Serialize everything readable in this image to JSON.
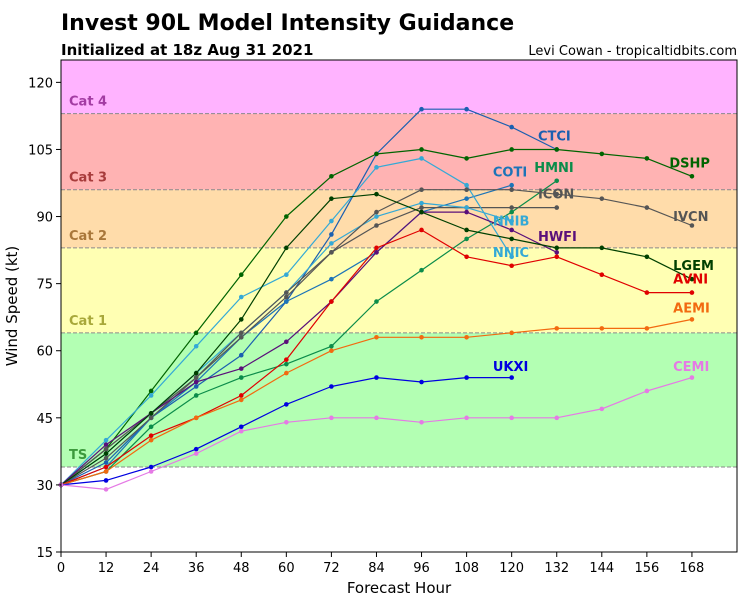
{
  "title": "Invest 90L Model Intensity Guidance",
  "subtitle": "Initialized at 18z Aug 31 2021",
  "credit": "Levi Cowan - tropicaltidbits.com",
  "chart_data": {
    "type": "line",
    "xlabel": "Forecast Hour",
    "ylabel": "Wind Speed (kt)",
    "xlim": [
      0,
      180
    ],
    "ylim": [
      15,
      125
    ],
    "xticks": [
      0,
      12,
      24,
      36,
      48,
      60,
      72,
      84,
      96,
      108,
      120,
      132,
      144,
      156,
      168
    ],
    "yticks": [
      15,
      30,
      45,
      60,
      75,
      90,
      105,
      120
    ],
    "grid": false,
    "bands": [
      {
        "label": "TS",
        "from": 34,
        "to": 64,
        "fill": "#b3ffb3",
        "text_color": "#3c9a3c"
      },
      {
        "label": "Cat 1",
        "from": 64,
        "to": 83,
        "fill": "#ffffb3",
        "text_color": "#a8a83a"
      },
      {
        "label": "Cat 2",
        "from": 83,
        "to": 96,
        "fill": "#ffdcaa",
        "text_color": "#a9773a"
      },
      {
        "label": "Cat 3",
        "from": 96,
        "to": 113,
        "fill": "#ffb3b3",
        "text_color": "#a83c3c"
      },
      {
        "label": "Cat 4",
        "from": 113,
        "to": 125,
        "fill": "#ffb3ff",
        "text_color": "#a33ca3"
      }
    ],
    "series": [
      {
        "name": "CTCI",
        "color": "#1b5fb0",
        "x": [
          0,
          12,
          24,
          36,
          48,
          60,
          72,
          84,
          96,
          108,
          120,
          132
        ],
        "y": [
          30,
          35,
          45,
          52,
          59,
          71,
          86,
          104,
          114,
          114,
          110,
          105
        ]
      },
      {
        "name": "DSHP",
        "color": "#006400",
        "x": [
          0,
          12,
          24,
          36,
          48,
          60,
          72,
          84,
          96,
          108,
          120,
          132,
          144,
          156,
          168
        ],
        "y": [
          30,
          38,
          51,
          64,
          77,
          90,
          99,
          104,
          105,
          103,
          105,
          105,
          104,
          103,
          99
        ]
      },
      {
        "name": "HMNI",
        "color": "#0b8c4a",
        "x": [
          0,
          12,
          24,
          36,
          48,
          60,
          72,
          84,
          96,
          108,
          120,
          132
        ],
        "y": [
          30,
          33,
          43,
          50,
          54,
          57,
          61,
          71,
          78,
          85,
          91,
          98
        ]
      },
      {
        "name": "COTI",
        "color": "#1c74b8",
        "x": [
          0,
          12,
          24,
          36,
          48,
          60,
          72,
          84,
          96,
          108,
          120
        ],
        "y": [
          30,
          34,
          45,
          53,
          63,
          71,
          76,
          82,
          91,
          94,
          97
        ]
      },
      {
        "name": "ICON",
        "color": "#555555",
        "x": [
          0,
          12,
          24,
          36,
          48,
          60,
          72,
          84,
          96,
          108,
          120,
          132
        ],
        "y": [
          30,
          36,
          45,
          54,
          63,
          72,
          82,
          88,
          92,
          92,
          92,
          92
        ]
      },
      {
        "name": "NNIB",
        "color": "#34a9d6",
        "x": [
          0,
          12,
          24,
          36,
          48,
          60,
          72,
          84,
          96,
          108,
          120
        ],
        "y": [
          30,
          37,
          46,
          55,
          64,
          73,
          84,
          90,
          93,
          92,
          89
        ]
      },
      {
        "name": "NNIC",
        "color": "#34a9d6",
        "x": [
          0,
          12,
          24,
          36,
          48,
          60,
          72,
          84,
          96,
          108,
          120
        ],
        "y": [
          30,
          40,
          50,
          61,
          72,
          77,
          89,
          101,
          103,
          97,
          81
        ]
      },
      {
        "name": "IVCN",
        "color": "#555555",
        "x": [
          0,
          12,
          24,
          36,
          48,
          60,
          72,
          84,
          96,
          108,
          120,
          132,
          144,
          156,
          168
        ],
        "y": [
          30,
          38,
          46,
          54,
          64,
          73,
          82,
          91,
          96,
          96,
          96,
          95,
          94,
          92,
          88
        ]
      },
      {
        "name": "HWFI",
        "color": "#5a0f7a",
        "x": [
          0,
          12,
          24,
          36,
          48,
          60,
          72,
          84,
          96,
          108,
          120,
          132
        ],
        "y": [
          30,
          39,
          46,
          53,
          56,
          62,
          71,
          82,
          91,
          91,
          87,
          82
        ]
      },
      {
        "name": "LGEM",
        "color": "#004000",
        "x": [
          0,
          12,
          24,
          36,
          48,
          60,
          72,
          84,
          96,
          108,
          120,
          132,
          144,
          156,
          168
        ],
        "y": [
          30,
          37,
          46,
          55,
          67,
          83,
          94,
          95,
          91,
          87,
          85,
          83,
          83,
          81,
          76
        ]
      },
      {
        "name": "AVNI",
        "color": "#e00000",
        "x": [
          0,
          12,
          24,
          36,
          48,
          60,
          72,
          84,
          96,
          108,
          120,
          132,
          144,
          156,
          168
        ],
        "y": [
          30,
          34,
          41,
          45,
          50,
          58,
          71,
          83,
          87,
          81,
          79,
          81,
          77,
          73,
          73
        ]
      },
      {
        "name": "AEMI",
        "color": "#f26a10",
        "x": [
          0,
          12,
          24,
          36,
          48,
          60,
          72,
          84,
          96,
          108,
          120,
          132,
          144,
          156,
          168
        ],
        "y": [
          30,
          33,
          40,
          45,
          49,
          55,
          60,
          63,
          63,
          63,
          64,
          65,
          65,
          65,
          67
        ]
      },
      {
        "name": "UKXI",
        "color": "#0000e0",
        "x": [
          0,
          12,
          24,
          36,
          48,
          60,
          72,
          84,
          96,
          108,
          120
        ],
        "y": [
          30,
          31,
          34,
          38,
          43,
          48,
          52,
          54,
          53,
          54,
          54
        ]
      },
      {
        "name": "CEMI",
        "color": "#e57ae5",
        "x": [
          0,
          12,
          24,
          36,
          48,
          60,
          72,
          84,
          96,
          108,
          120,
          132,
          144,
          156,
          168
        ],
        "y": [
          30,
          29,
          33,
          37,
          42,
          44,
          45,
          45,
          44,
          45,
          45,
          45,
          47,
          51,
          54
        ]
      }
    ],
    "series_labels": [
      {
        "name": "CTCI",
        "x": 127,
        "y": 107,
        "color": "#1b5fb0"
      },
      {
        "name": "DSHP",
        "x": 162,
        "y": 101,
        "color": "#006400"
      },
      {
        "name": "HMNI",
        "x": 126,
        "y": 100,
        "color": "#0b8c4a"
      },
      {
        "name": "COTI",
        "x": 115,
        "y": 99,
        "color": "#1c74b8"
      },
      {
        "name": "ICON",
        "x": 127,
        "y": 94,
        "color": "#555555"
      },
      {
        "name": "NNIB",
        "x": 115,
        "y": 88,
        "color": "#34a9d6"
      },
      {
        "name": "IVCN",
        "x": 163,
        "y": 89,
        "color": "#555555"
      },
      {
        "name": "HWFI",
        "x": 127,
        "y": 84.5,
        "color": "#5a0f7a"
      },
      {
        "name": "NNIC",
        "x": 115,
        "y": 81,
        "color": "#34a9d6"
      },
      {
        "name": "LGEM",
        "x": 163,
        "y": 78,
        "color": "#004000"
      },
      {
        "name": "AVNI",
        "x": 163,
        "y": 75,
        "color": "#e00000"
      },
      {
        "name": "AEMI",
        "x": 163,
        "y": 68.5,
        "color": "#f26a10"
      },
      {
        "name": "UKXI",
        "x": 115,
        "y": 55.5,
        "color": "#0000e0"
      },
      {
        "name": "CEMI",
        "x": 163,
        "y": 55.5,
        "color": "#e57ae5"
      }
    ]
  }
}
